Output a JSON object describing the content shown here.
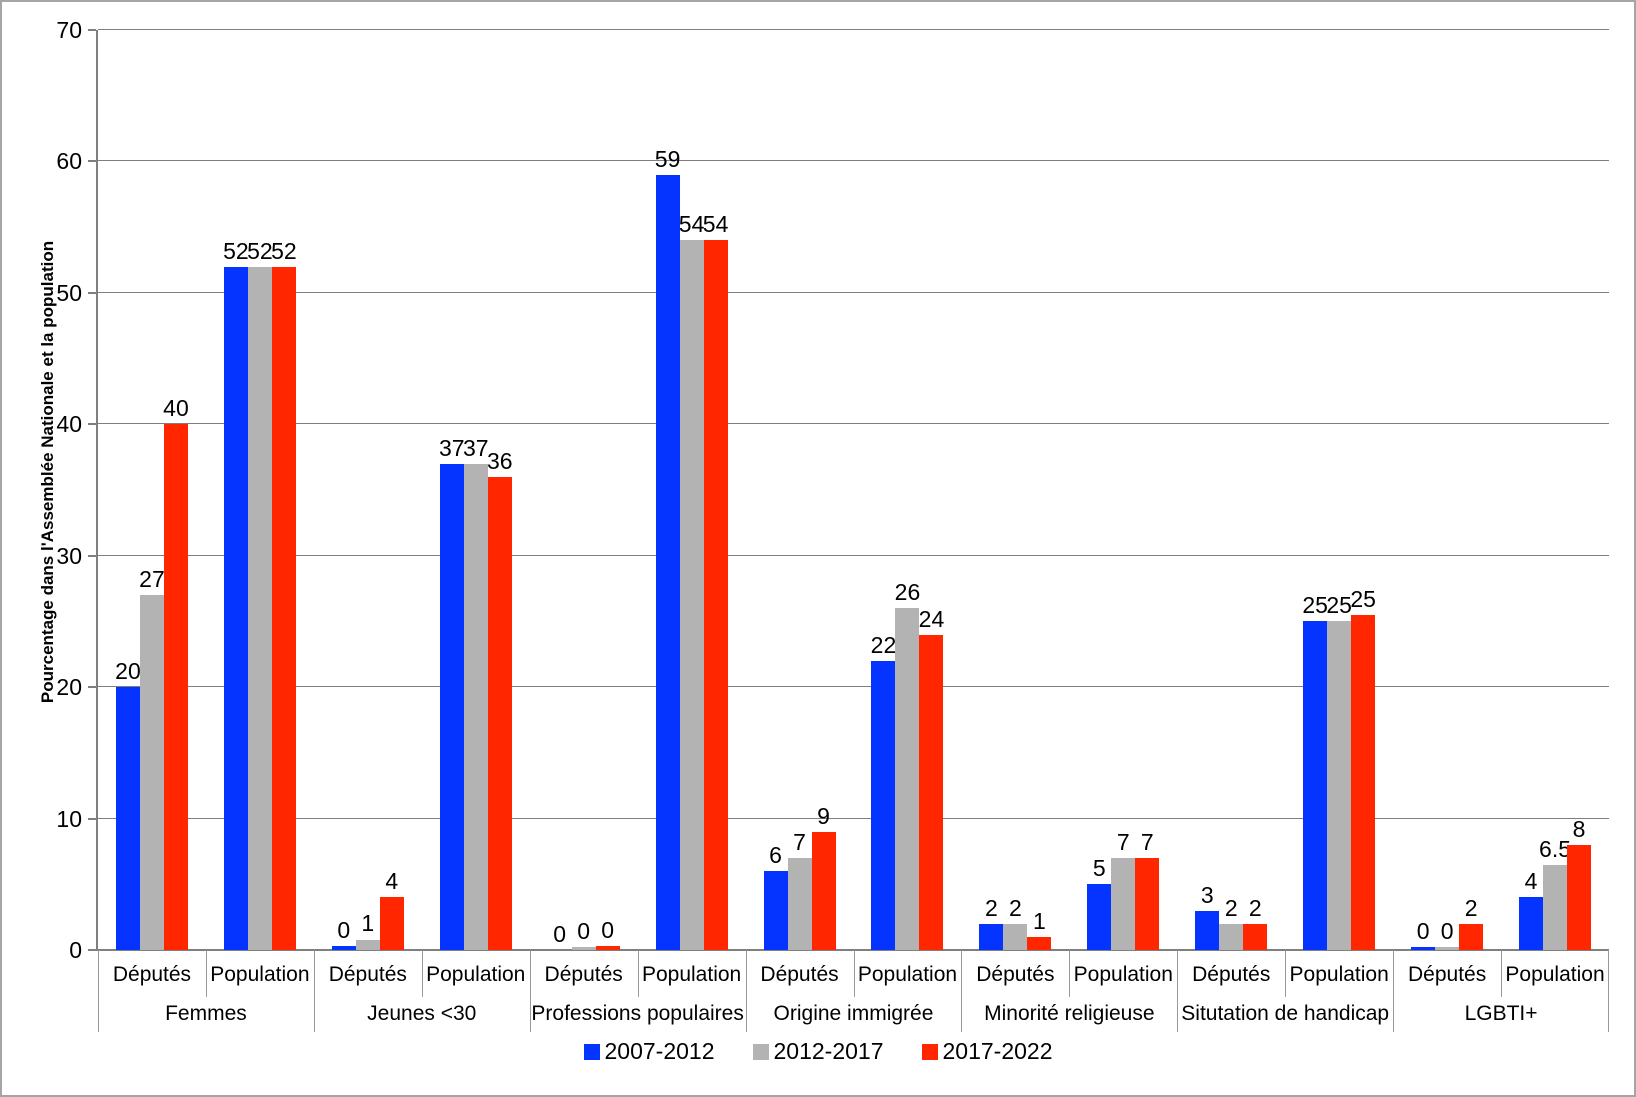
{
  "chart_data": {
    "type": "bar",
    "title": "",
    "ylabel": "Pourcentage dans l'Assemblée Nationale et la population",
    "xlabel": "",
    "ylim": [
      0,
      70
    ],
    "ytick_step": 10,
    "grid": true,
    "legend_position": "bottom-center",
    "series": [
      {
        "name": "2007-2012",
        "color": "#0533ff"
      },
      {
        "name": "2012-2017",
        "color": "#b3b3b3"
      },
      {
        "name": "2017-2022",
        "color": "#ff2600"
      }
    ],
    "groups": [
      {
        "label": "Femmes",
        "cells": [
          {
            "label": "Députés",
            "values": [
              20,
              27,
              40
            ]
          },
          {
            "label": "Population",
            "values": [
              52,
              52,
              52
            ]
          }
        ]
      },
      {
        "label": "Jeunes <30",
        "cells": [
          {
            "label": "Députés",
            "values": [
              0,
              1,
              4
            ],
            "heights": [
              0.3,
              0.8,
              4
            ]
          },
          {
            "label": "Population",
            "values": [
              37,
              37,
              36
            ]
          }
        ]
      },
      {
        "label": "Professions populaires",
        "cells": [
          {
            "label": "Députés",
            "values": [
              0,
              0,
              0
            ],
            "heights": [
              0,
              0.2,
              0.3
            ]
          },
          {
            "label": "Population",
            "values": [
              59,
              54,
              54
            ]
          }
        ]
      },
      {
        "label": "Origine immigrée",
        "cells": [
          {
            "label": "Députés",
            "values": [
              6,
              7,
              9
            ]
          },
          {
            "label": "Population",
            "values": [
              22,
              26,
              24
            ]
          }
        ]
      },
      {
        "label": "Minorité religieuse",
        "cells": [
          {
            "label": "Députés",
            "values": [
              2,
              2,
              1
            ]
          },
          {
            "label": "Population",
            "values": [
              5,
              7,
              7
            ]
          }
        ]
      },
      {
        "label": "Situtation de handicap",
        "cells": [
          {
            "label": "Députés",
            "values": [
              3,
              2,
              2
            ]
          },
          {
            "label": "Population",
            "values": [
              25,
              25,
              25
            ],
            "heights": [
              25,
              25,
              25.5
            ]
          }
        ]
      },
      {
        "label": "LGBTI+",
        "cells": [
          {
            "label": "Députés",
            "values": [
              0,
              0,
              2
            ],
            "heights": [
              0.2,
              0.2,
              2
            ]
          },
          {
            "label": "Population",
            "values": [
              4,
              6.5,
              8
            ]
          }
        ]
      }
    ]
  }
}
